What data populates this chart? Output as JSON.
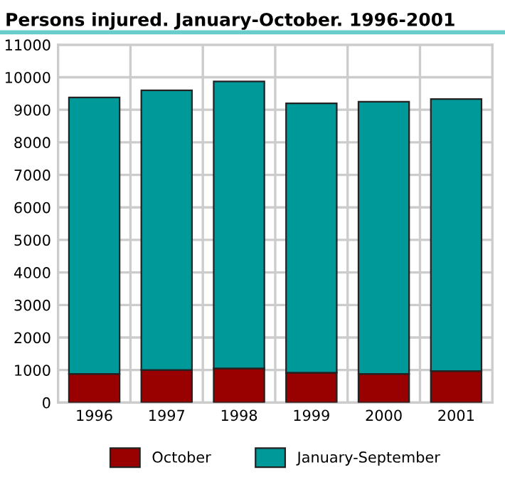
{
  "chart_data": {
    "type": "bar",
    "title": "Persons injured. January-October. 1996-2001",
    "categories": [
      "1996",
      "1997",
      "1998",
      "1999",
      "2000",
      "2001"
    ],
    "stacked": true,
    "series": [
      {
        "name": "October",
        "color": "#990000",
        "values": [
          880,
          1000,
          1050,
          920,
          880,
          970
        ]
      },
      {
        "name": "January-September",
        "color": "#009999",
        "values": [
          8500,
          8600,
          8820,
          8280,
          8370,
          8360
        ]
      }
    ],
    "ylim": [
      0,
      11000
    ],
    "yticks": [
      0,
      1000,
      2000,
      3000,
      4000,
      5000,
      6000,
      7000,
      8000,
      9000,
      10000,
      11000
    ],
    "grid": true,
    "legend": "bottom"
  }
}
